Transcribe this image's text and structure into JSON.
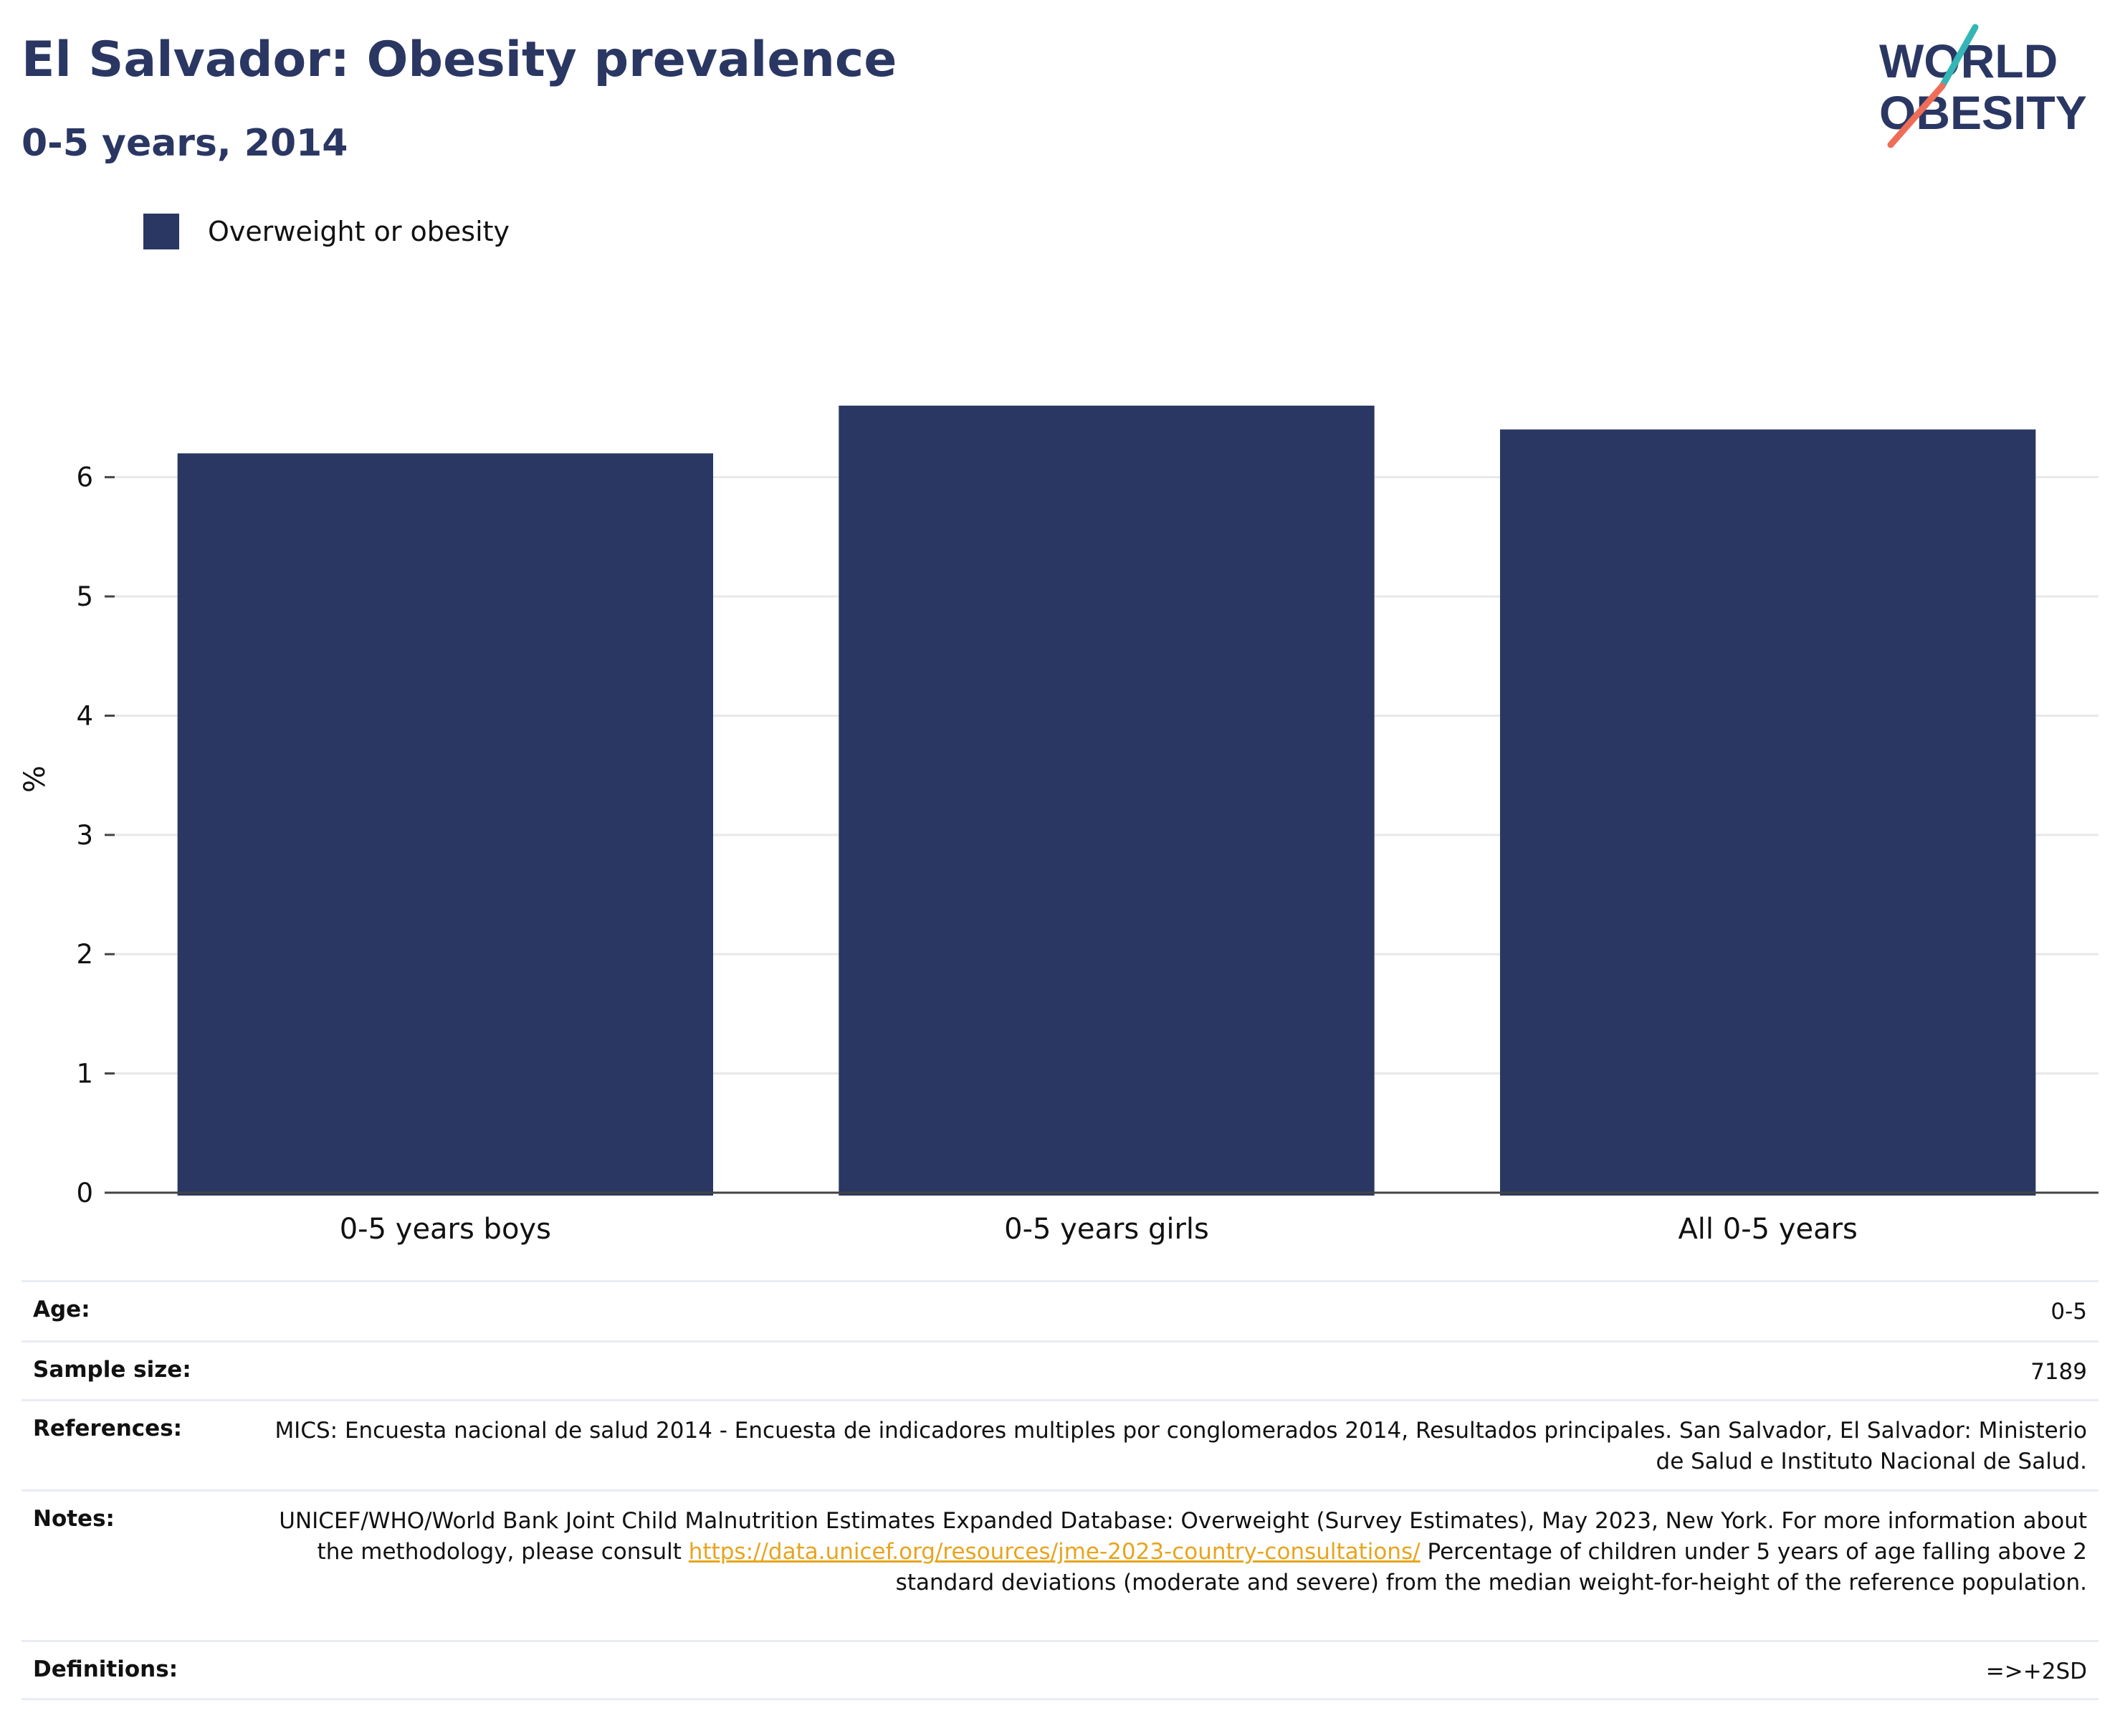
{
  "header": {
    "title": "El Salvador: Obesity prevalence",
    "subtitle": "0-5 years, 2014"
  },
  "logo": {
    "line1": "WORLD",
    "line2": "OBESITY",
    "colors": {
      "navy": "#2a3763",
      "teal": "#34b6b7",
      "coral": "#ee6d59"
    }
  },
  "chart_data": {
    "type": "bar",
    "categories": [
      "0-5 years boys",
      "0-5 years girls",
      "All 0-5 years"
    ],
    "series": [
      {
        "name": "Overweight or obesity",
        "values": [
          6.2,
          6.6,
          6.4
        ],
        "color": "#2a3763"
      }
    ],
    "ylabel": "%",
    "xlabel": "",
    "ylim": [
      0,
      6.9
    ],
    "yticks": [
      0,
      1,
      2,
      3,
      4,
      5,
      6
    ],
    "grid": true,
    "legend_position": "top-left"
  },
  "info": {
    "age_label": "Age:",
    "age_value": "0-5",
    "sample_label": "Sample size:",
    "sample_value": "7189",
    "references_label": "References:",
    "references_value": "MICS: Encuesta nacional de salud 2014 - Encuesta de indicadores multiples por conglomerados 2014, Resultados principales. San Salvador, El Salvador: Ministerio de Salud e Instituto Nacional de Salud.",
    "notes_label": "Notes:",
    "notes_text_1": "UNICEF/WHO/World Bank Joint Child Malnutrition Estimates Expanded Database: Overweight (Survey Estimates), May 2023, New York. For more information about the methodology, please consult ",
    "notes_link": "https://data.unicef.org/resources/jme-2023-country-consultations/",
    "notes_text_2": " Percentage of children under 5 years of age falling above 2 standard deviations (moderate and severe) from the median weight-for-height of the reference population.",
    "definitions_label": "Definitions:",
    "definitions_value": "=>+2SD"
  }
}
